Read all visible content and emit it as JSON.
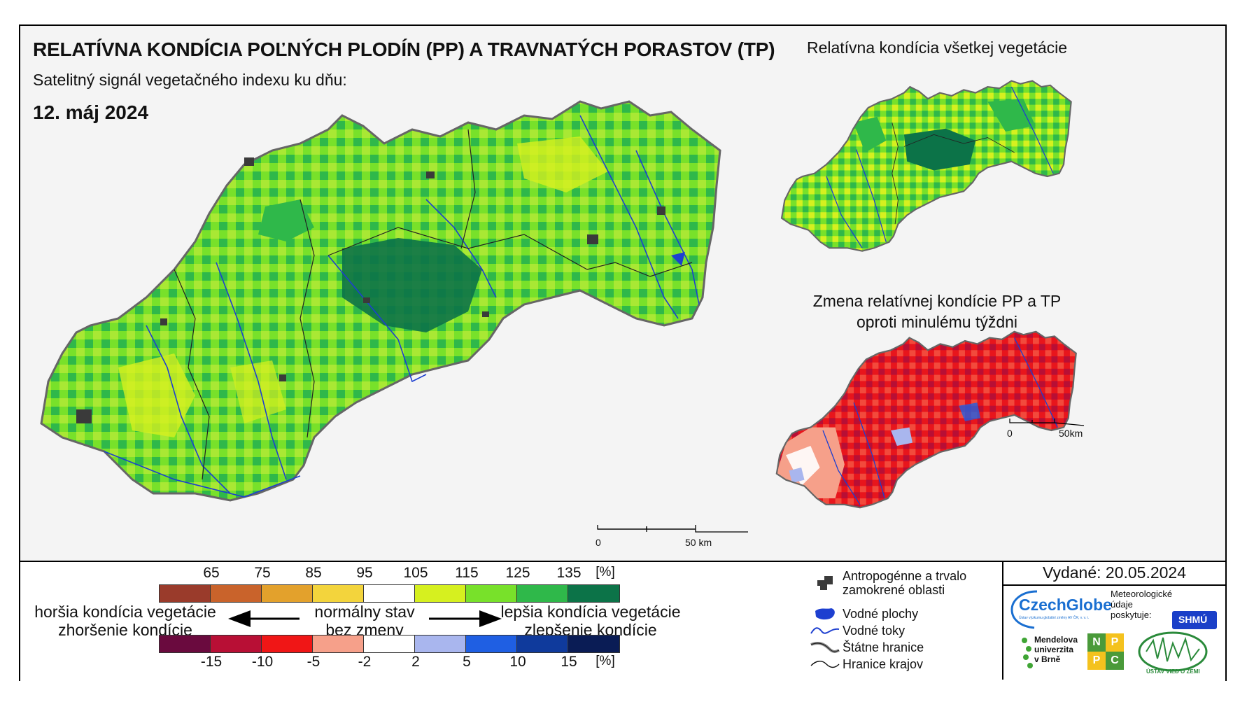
{
  "header": {
    "title": "RELATÍVNA KONDÍCIA POĽNÝCH PLODÍN (PP) A TRAVNATÝCH PORASTOV (TP)",
    "subtitle": "Satelitný signál vegetačného indexu ku dňu:",
    "date": "12. máj 2024"
  },
  "panels": {
    "all_vegetation_title": "Relatívna kondícia všetkej vegetácie",
    "change_title_line1": "Zmena relatívnej kondície PP a TP",
    "change_title_line2": "oproti minulému týždni"
  },
  "scalebars": {
    "main": {
      "zero": "0",
      "end": "50 km"
    },
    "small": {
      "zero": "0",
      "end": "50km"
    }
  },
  "legend": {
    "condition_scale": {
      "ticks": [
        "65",
        "75",
        "85",
        "95",
        "105",
        "115",
        "125",
        "135"
      ],
      "unit": "[%]",
      "colors": [
        "#9a3b2b",
        "#c9632b",
        "#e3a12c",
        "#f3d43c",
        "#ffffff",
        "#d6f01f",
        "#78e12a",
        "#2fb84a",
        "#0c7348"
      ]
    },
    "change_scale": {
      "ticks": [
        "-15",
        "-10",
        "-5",
        "-2",
        "2",
        "5",
        "10",
        "15"
      ],
      "unit": "[%]",
      "colors": [
        "#6a0a3e",
        "#b80f35",
        "#f01616",
        "#f6a08a",
        "#ffffff",
        "#a9b6ee",
        "#1f5fe3",
        "#0f3a9c",
        "#0a1c55"
      ]
    },
    "worse_line1": "horšia kondícia vegetácie",
    "worse_line2": "zhoršenie kondície",
    "normal_line1": "normálny stav",
    "normal_line2": "bez zmeny",
    "better_line1": "lepšia kondícia vegetácie",
    "better_line2": "zlepšenie kondície"
  },
  "symbols": {
    "urban_line1": "Antropogénne a trvalo",
    "urban_line2": "zamokrené oblasti",
    "water_bodies": "Vodné plochy",
    "rivers": "Vodné toky",
    "state_border": "Štátne hranice",
    "region_border": "Hranice krajov"
  },
  "issued": "Vydané: 20.05.2024",
  "logos": {
    "czechglobe": "CzechGlobe",
    "czechglobe_sub": "Ústav výzkumu globální změny AV ČR, v. v. i.",
    "provider_line1": "Meteorologické",
    "provider_line2": "údaje",
    "provider_line3": "poskytuje:",
    "shmu": "SHMÚ",
    "mendel_line1": "Mendelova",
    "mendel_line2": "univerzita",
    "mendel_line3": "v Brně",
    "nppc": [
      "N",
      "P",
      "P",
      "C"
    ],
    "ustav": "ÚSTAV VIED O ZEMI"
  },
  "colors": {
    "map_green_dark": "#0c7348",
    "map_green": "#2fb84a",
    "map_green_light": "#78e12a",
    "map_yellow_green": "#d6f01f",
    "change_red": "#e8151c",
    "river_blue": "#1d3fd0",
    "urban_gray": "#3a3a3a"
  }
}
